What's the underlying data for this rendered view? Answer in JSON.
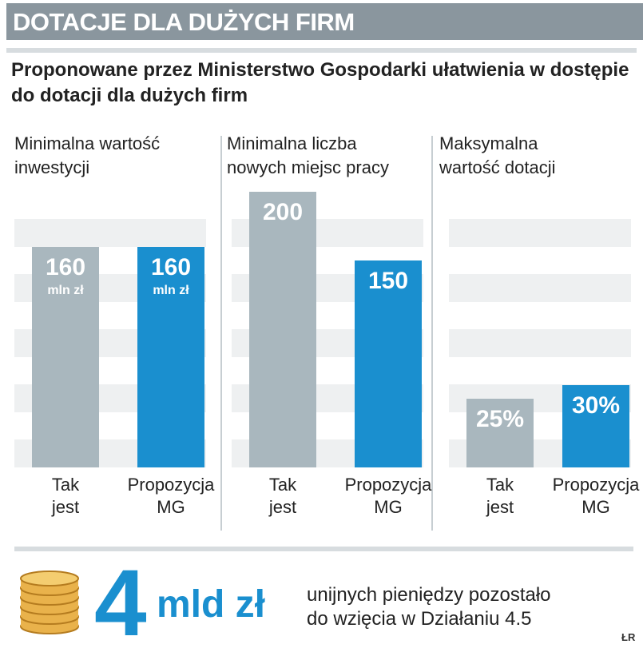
{
  "header": {
    "title": "DOTACJE DLA DUŻYCH FIRM"
  },
  "subtitle": "Proponowane przez Ministerstwo Gospodarki ułatwienia w dostępie do dotacji dla dużych firm",
  "colors": {
    "grey_bar": "#a9b7be",
    "blue_bar": "#1a8fcf",
    "header_bg": "#8a969e",
    "accent": "#1a8fcf"
  },
  "chart_data": [
    {
      "type": "bar",
      "title": "Minimalna wartość inwestycji",
      "categories": [
        "Tak jest",
        "Propozycja MG"
      ],
      "values": [
        160,
        160
      ],
      "value_labels": [
        "160",
        "160"
      ],
      "unit_labels": [
        "mln zł",
        "mln zł"
      ],
      "ylim": [
        0,
        200
      ],
      "category_lines": [
        [
          "Tak",
          "jest"
        ],
        [
          "Propozycja",
          "MG"
        ]
      ]
    },
    {
      "type": "bar",
      "title": "Minimalna liczba nowych miejsc pracy",
      "categories": [
        "Tak jest",
        "Propozycja MG"
      ],
      "values": [
        200,
        150
      ],
      "value_labels": [
        "200",
        "150"
      ],
      "unit_labels": [
        "",
        ""
      ],
      "ylim": [
        0,
        200
      ],
      "category_lines": [
        [
          "Tak",
          "jest"
        ],
        [
          "Propozycja",
          "MG"
        ]
      ]
    },
    {
      "type": "bar",
      "title": "Maksymalna wartość dotacji",
      "categories": [
        "Tak jest",
        "Propozycja MG"
      ],
      "values": [
        25,
        30
      ],
      "value_labels": [
        "25%",
        "30%"
      ],
      "unit_labels": [
        "",
        ""
      ],
      "ylim": [
        0,
        100
      ],
      "category_lines": [
        [
          "Tak",
          "jest"
        ],
        [
          "Propozycja",
          "MG"
        ]
      ]
    }
  ],
  "panel_titles": [
    [
      "Minimalna wartość",
      "inwestycji"
    ],
    [
      "Minimalna liczba",
      "nowych miejsc pracy"
    ],
    [
      "Maksymalna",
      "wartość dotacji"
    ]
  ],
  "footer": {
    "big_number": "4",
    "big_unit": "mld zł",
    "note_line1": "unijnych pieniędzy pozostało",
    "note_line2": "do wzięcia w Działaniu 4.5",
    "coins_icon": "coin-stack-icon",
    "credit": "ŁR"
  }
}
